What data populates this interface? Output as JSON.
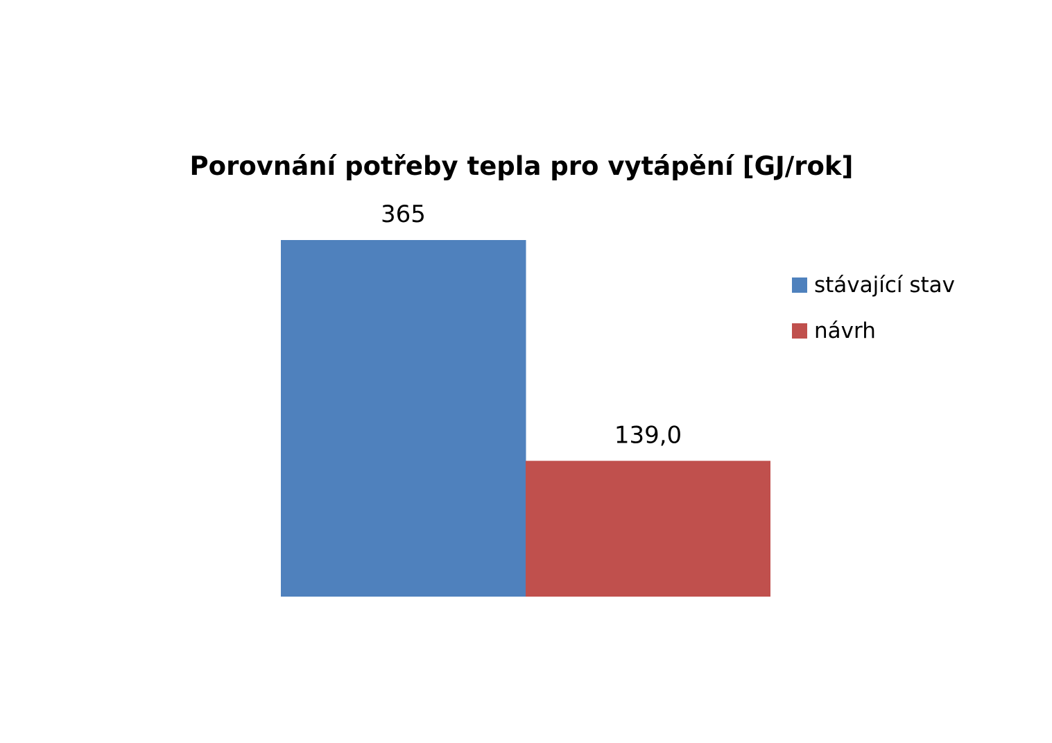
{
  "chart_data": {
    "type": "bar",
    "title": "Porovnání potřeby tepla pro vytápění [GJ/rok]",
    "categories": [
      ""
    ],
    "series": [
      {
        "name": "stávající stav",
        "values": [
          365
        ],
        "label": "365",
        "color": "#4F81BD"
      },
      {
        "name": "návrh",
        "values": [
          139.0
        ],
        "label": "139,0",
        "color": "#C0504D"
      }
    ],
    "ylim": [
      0,
      365
    ],
    "grid": false,
    "axes_visible": false,
    "legend": "right"
  }
}
